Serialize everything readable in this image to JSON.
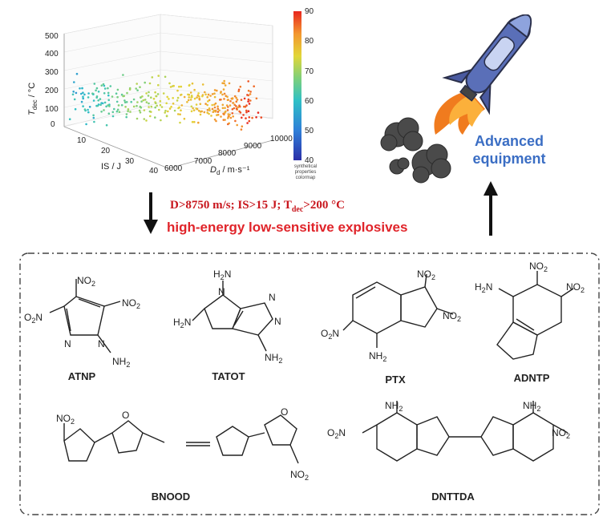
{
  "plot": {
    "z_ticks": [
      "500",
      "400",
      "300",
      "200",
      "100",
      "0"
    ],
    "is_ticks": [
      "10",
      "20",
      "30",
      "40"
    ],
    "dd_ticks": [
      "6000",
      "7000",
      "8000",
      "9000",
      "10000"
    ],
    "z_label": "T",
    "z_label_sub": "dec",
    "z_label_unit": " / °C",
    "is_label": "IS / J",
    "dd_label": "D",
    "dd_label_sub": "d",
    "dd_label_unit": " / m·s⁻¹",
    "colorbar_ticks": [
      "90",
      "80",
      "70",
      "60",
      "50",
      "40"
    ],
    "colorbar_label": [
      "synthetical",
      "properties",
      "colormap"
    ],
    "colors": {
      "low": "#2b2fa8",
      "high": "#e8261e"
    }
  },
  "criteria": {
    "part1": "D>8750 m/s; IS>15 J; T",
    "sub": "dec",
    "part2": ">200 °C"
  },
  "heading": "high-energy low-sensitive explosives",
  "advanced_label": "Advanced equipment",
  "molecules": [
    "ATNP",
    "TATOT",
    "PTX",
    "ADNTP",
    "BNOOD",
    "DNTTDA"
  ]
}
